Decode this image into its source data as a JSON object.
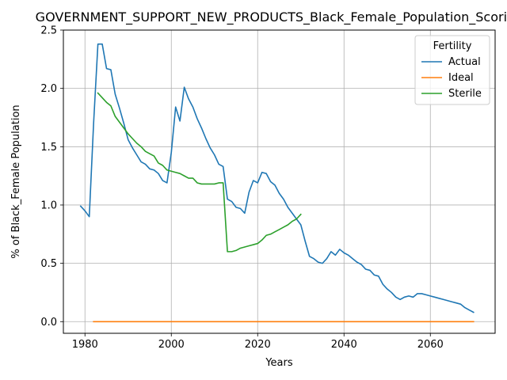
{
  "chart_data": {
    "type": "line",
    "title": "GOVERNMENT_SUPPORT_NEW_PRODUCTS_Black_Female_Population_Scoring",
    "xlabel": "Years",
    "ylabel": "% of Black_Female Population",
    "xlim": [
      1975,
      2075
    ],
    "ylim": [
      -0.1,
      2.5
    ],
    "xticks": [
      1980,
      2000,
      2020,
      2040,
      2060
    ],
    "yticks": [
      0.0,
      0.5,
      1.0,
      1.5,
      2.0,
      2.5
    ],
    "xtick_labels": [
      "1980",
      "2000",
      "2020",
      "2040",
      "2060"
    ],
    "ytick_labels": [
      "0.0",
      "0.5",
      "1.0",
      "1.5",
      "2.0",
      "2.5"
    ],
    "grid": true,
    "legend": {
      "title": "Fertility",
      "placement": "top-right"
    },
    "series": [
      {
        "name": "Actual",
        "color": "#1f77b4",
        "x": [
          1979,
          1980,
          1981,
          1982,
          1983,
          1984,
          1985,
          1986,
          1987,
          1988,
          1989,
          1990,
          1991,
          1992,
          1993,
          1994,
          1995,
          1996,
          1997,
          1998,
          1999,
          2000,
          2001,
          2002,
          2003,
          2004,
          2005,
          2006,
          2007,
          2008,
          2009,
          2010,
          2011,
          2012,
          2013,
          2014,
          2015,
          2016,
          2017,
          2018,
          2019,
          2020,
          2021,
          2022,
          2023,
          2024,
          2025,
          2026,
          2027,
          2028,
          2029,
          2030,
          2031,
          2032,
          2033,
          2034,
          2035,
          2036,
          2037,
          2038,
          2039,
          2040,
          2041,
          2042,
          2043,
          2044,
          2045,
          2046,
          2047,
          2048,
          2049,
          2050,
          2051,
          2052,
          2053,
          2054,
          2055,
          2056,
          2057,
          2058,
          2059,
          2060,
          2061,
          2062,
          2063,
          2064,
          2065,
          2066,
          2067,
          2068,
          2069,
          2070
        ],
        "values": [
          0.99,
          0.95,
          0.9,
          1.7,
          2.38,
          2.38,
          2.17,
          2.16,
          1.95,
          1.83,
          1.7,
          1.56,
          1.49,
          1.43,
          1.37,
          1.35,
          1.31,
          1.3,
          1.27,
          1.21,
          1.19,
          1.45,
          1.84,
          1.72,
          2.01,
          1.91,
          1.84,
          1.74,
          1.66,
          1.57,
          1.49,
          1.43,
          1.35,
          1.33,
          1.05,
          1.03,
          0.98,
          0.97,
          0.93,
          1.11,
          1.21,
          1.19,
          1.28,
          1.27,
          1.2,
          1.17,
          1.1,
          1.05,
          0.98,
          0.93,
          0.88,
          0.83,
          0.69,
          0.56,
          0.54,
          0.51,
          0.5,
          0.54,
          0.6,
          0.57,
          0.62,
          0.59,
          0.57,
          0.54,
          0.51,
          0.49,
          0.45,
          0.44,
          0.4,
          0.39,
          0.32,
          0.28,
          0.25,
          0.21,
          0.19,
          0.21,
          0.22,
          0.21,
          0.24,
          0.24,
          0.23,
          0.22,
          0.21,
          0.2,
          0.19,
          0.18,
          0.17,
          0.16,
          0.15,
          0.12,
          0.1,
          0.08
        ]
      },
      {
        "name": "Ideal",
        "color": "#ff7f0e",
        "x": [
          1982,
          2070
        ],
        "values": [
          0.0,
          0.0
        ]
      },
      {
        "name": "Sterile",
        "color": "#2ca02c",
        "x": [
          1983,
          1984,
          1985,
          1986,
          1987,
          1988,
          1989,
          1990,
          1991,
          1992,
          1993,
          1994,
          1995,
          1996,
          1997,
          1998,
          1999,
          2000,
          2001,
          2002,
          2003,
          2004,
          2005,
          2006,
          2007,
          2008,
          2009,
          2010,
          2011,
          2012,
          2013,
          2014,
          2015,
          2016,
          2017,
          2018,
          2019,
          2020,
          2021,
          2022,
          2023,
          2024,
          2025,
          2026,
          2027,
          2028,
          2029,
          2030
        ],
        "values": [
          1.96,
          1.92,
          1.88,
          1.85,
          1.76,
          1.71,
          1.66,
          1.61,
          1.57,
          1.53,
          1.5,
          1.46,
          1.44,
          1.42,
          1.36,
          1.34,
          1.3,
          1.29,
          1.28,
          1.27,
          1.25,
          1.23,
          1.23,
          1.19,
          1.18,
          1.18,
          1.18,
          1.18,
          1.19,
          1.19,
          0.6,
          0.6,
          0.61,
          0.63,
          0.64,
          0.65,
          0.66,
          0.67,
          0.7,
          0.74,
          0.75,
          0.77,
          0.79,
          0.81,
          0.83,
          0.86,
          0.88,
          0.92
        ]
      }
    ]
  }
}
